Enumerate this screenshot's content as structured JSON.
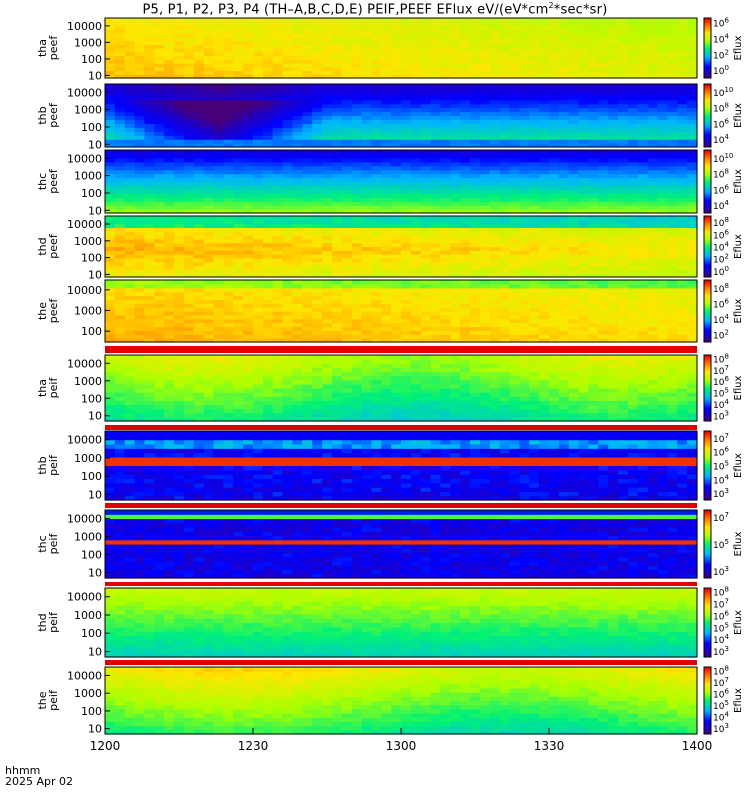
{
  "title_parts": {
    "pre": "P5, P1, P2, P3, P4 (TH–A,B,C,D,E) PEIF,PEEF EFlux eV/(eV*cm",
    "sup": "2",
    "post": "*sec*sr)"
  },
  "time_axis": {
    "label": "hhmm",
    "date": "2025 Apr 02",
    "ticks": [
      "1200",
      "1230",
      "1300",
      "1330",
      "1400"
    ]
  },
  "chart_data": [
    {
      "type": "heatmap",
      "probe": "tha",
      "species": "peef",
      "ylabel": [
        "tha",
        "peef"
      ],
      "yticks": [
        "10000",
        "1000",
        "100",
        "10"
      ],
      "yscale": "log",
      "ylim": [
        7,
        30000
      ],
      "xlim": [
        "12:00",
        "14:00"
      ],
      "colorbar": {
        "label": "Eflux",
        "ticks": [
          [
            "10",
            "6"
          ],
          [
            "10",
            "4"
          ],
          [
            "10",
            "2"
          ],
          [
            "10",
            "0"
          ]
        ],
        "zlim_log": [
          -1,
          6.6
        ]
      }
    },
    {
      "type": "heatmap",
      "probe": "thb",
      "species": "peef",
      "ylabel": [
        "thb",
        "peef"
      ],
      "yticks": [
        "10000",
        "1000",
        "100",
        "10"
      ],
      "yscale": "log",
      "ylim": [
        7,
        30000
      ],
      "xlim": [
        "12:00",
        "14:00"
      ],
      "colorbar": {
        "label": "Eflux",
        "ticks": [
          [
            "10",
            "10"
          ],
          [
            "10",
            "8"
          ],
          [
            "10",
            "6"
          ],
          [
            "10",
            "4"
          ]
        ],
        "zlim_log": [
          3,
          11
        ]
      }
    },
    {
      "type": "heatmap",
      "probe": "thc",
      "species": "peef",
      "ylabel": [
        "thc",
        "peef"
      ],
      "yticks": [
        "10000",
        "1000",
        "100",
        "10"
      ],
      "yscale": "log",
      "ylim": [
        7,
        30000
      ],
      "xlim": [
        "12:00",
        "14:00"
      ],
      "colorbar": {
        "label": "Eflux",
        "ticks": [
          [
            "10",
            "10"
          ],
          [
            "10",
            "8"
          ],
          [
            "10",
            "6"
          ],
          [
            "10",
            "4"
          ]
        ],
        "zlim_log": [
          3,
          11
        ]
      }
    },
    {
      "type": "heatmap",
      "probe": "thd",
      "species": "peef",
      "ylabel": [
        "thd",
        "peef"
      ],
      "yticks": [
        "10000",
        "1000",
        "100",
        "10"
      ],
      "yscale": "log",
      "ylim": [
        7,
        30000
      ],
      "xlim": [
        "12:00",
        "14:00"
      ],
      "colorbar": {
        "label": "Eflux",
        "ticks": [
          [
            "10",
            "8"
          ],
          [
            "10",
            "6"
          ],
          [
            "10",
            "4"
          ],
          [
            "10",
            "2"
          ],
          [
            "10",
            "0"
          ]
        ],
        "zlim_log": [
          -1,
          9
        ]
      }
    },
    {
      "type": "heatmap",
      "probe": "the",
      "species": "peef",
      "ylabel": [
        "the",
        "peef"
      ],
      "yticks": [
        "10000",
        "1000",
        "100"
      ],
      "yscale": "log",
      "ylim": [
        30,
        30000
      ],
      "xlim": [
        "12:00",
        "14:00"
      ],
      "colorbar": {
        "label": "Eflux",
        "ticks": [
          [
            "10",
            "8"
          ],
          [
            "10",
            "6"
          ],
          [
            "10",
            "4"
          ],
          [
            "10",
            "2"
          ]
        ],
        "zlim_log": [
          1,
          9
        ]
      }
    },
    {
      "type": "heatmap",
      "probe": "tha",
      "species": "peif",
      "ylabel": [
        "tha",
        "peif"
      ],
      "yticks": [
        "10000",
        "1000",
        "100",
        "10"
      ],
      "yscale": "log",
      "ylim": [
        5,
        30000
      ],
      "xlim": [
        "12:00",
        "14:00"
      ],
      "colorbar": {
        "label": "Eflux",
        "ticks": [
          [
            "10",
            "8"
          ],
          [
            "10",
            "7"
          ],
          [
            "10",
            "6"
          ],
          [
            "10",
            "5"
          ],
          [
            "10",
            "4"
          ],
          [
            "10",
            "3"
          ]
        ],
        "zlim_log": [
          2.5,
          8.3
        ]
      }
    },
    {
      "type": "heatmap",
      "probe": "thb",
      "species": "peif",
      "ylabel": [
        "thb",
        "peif"
      ],
      "yticks": [
        "10000",
        "1000",
        "100",
        "10"
      ],
      "yscale": "log",
      "ylim": [
        5,
        30000
      ],
      "xlim": [
        "12:00",
        "14:00"
      ],
      "colorbar": {
        "label": "Eflux",
        "ticks": [
          [
            "10",
            "7"
          ],
          [
            "10",
            "6"
          ],
          [
            "10",
            "5"
          ],
          [
            "10",
            "4"
          ],
          [
            "10",
            "3"
          ]
        ],
        "zlim_log": [
          2.5,
          7.5
        ]
      }
    },
    {
      "type": "heatmap",
      "probe": "thc",
      "species": "peif",
      "ylabel": [
        "thc",
        "peif"
      ],
      "yticks": [
        "10000",
        "1000",
        "100",
        "10"
      ],
      "yscale": "log",
      "ylim": [
        5,
        30000
      ],
      "xlim": [
        "12:00",
        "14:00"
      ],
      "colorbar": {
        "label": "Eflux",
        "ticks": [
          [
            "10",
            "7"
          ],
          [
            "10",
            "5"
          ],
          [
            "10",
            "3"
          ]
        ],
        "zlim_log": [
          2.5,
          7.5
        ]
      }
    },
    {
      "type": "heatmap",
      "probe": "thd",
      "species": "peif",
      "ylabel": [
        "thd",
        "peif"
      ],
      "yticks": [
        "10000",
        "1000",
        "100",
        "10"
      ],
      "yscale": "log",
      "ylim": [
        5,
        30000
      ],
      "xlim": [
        "12:00",
        "14:00"
      ],
      "colorbar": {
        "label": "Eflux",
        "ticks": [
          [
            "10",
            "8"
          ],
          [
            "10",
            "7"
          ],
          [
            "10",
            "6"
          ],
          [
            "10",
            "5"
          ],
          [
            "10",
            "4"
          ],
          [
            "10",
            "3"
          ]
        ],
        "zlim_log": [
          2.5,
          8.3
        ]
      }
    },
    {
      "type": "heatmap",
      "probe": "the",
      "species": "peif",
      "ylabel": [
        "the",
        "peif"
      ],
      "yticks": [
        "10000",
        "1000",
        "100",
        "10"
      ],
      "yscale": "log",
      "ylim": [
        5,
        30000
      ],
      "xlim": [
        "12:00",
        "14:00"
      ],
      "colorbar": {
        "label": "Eflux",
        "ticks": [
          [
            "10",
            "8"
          ],
          [
            "10",
            "7"
          ],
          [
            "10",
            "6"
          ],
          [
            "10",
            "5"
          ],
          [
            "10",
            "4"
          ],
          [
            "10",
            "3"
          ]
        ],
        "zlim_log": [
          2.5,
          8.3
        ]
      }
    }
  ]
}
